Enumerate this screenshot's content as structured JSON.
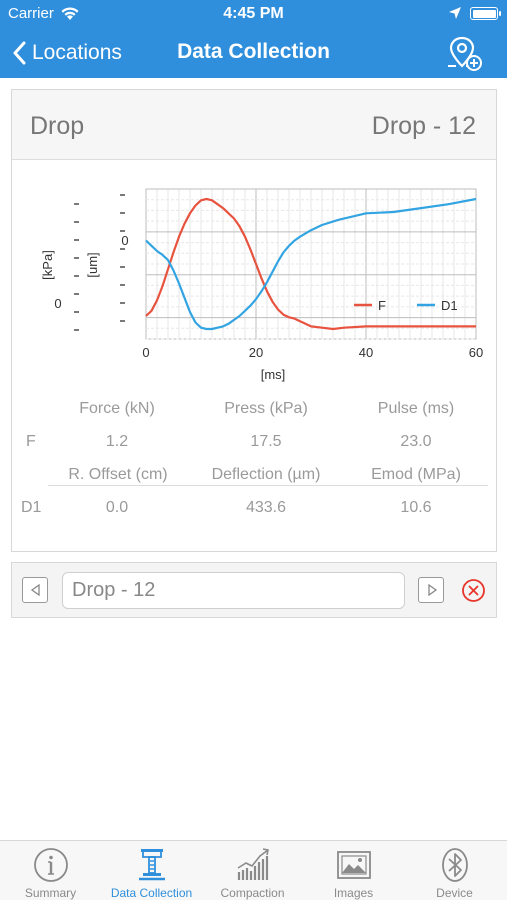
{
  "status_bar": {
    "carrier": "Carrier",
    "time": "4:45 PM",
    "battery_level": 1.0
  },
  "nav": {
    "back_label": "Locations",
    "title": "Data Collection",
    "action_icon": "add-location-icon"
  },
  "drop_card": {
    "title": "Drop",
    "drop_name": "Drop - 12",
    "chart_data": {
      "type": "line",
      "x_label": "[ms]",
      "x_ticks": [
        "0",
        "20",
        "40",
        "60"
      ],
      "xlim": [
        0,
        60
      ],
      "left_axis_labels": [
        "[kPa]",
        "[um]"
      ],
      "left_tick_labels": [
        "0",
        "0"
      ],
      "legend_position": "bottom-right",
      "grid": true,
      "series": [
        {
          "name": "F",
          "color": "#e8533f",
          "x": [
            0,
            1,
            2,
            3,
            4,
            5,
            6,
            7,
            8,
            9,
            10,
            11,
            12,
            13,
            14,
            15,
            16,
            17,
            18,
            19,
            20,
            21,
            22,
            23,
            24,
            25,
            26,
            27,
            28,
            29,
            30,
            32,
            34,
            36,
            40,
            45,
            50,
            55,
            60
          ],
          "y": [
            0.1,
            0.14,
            0.22,
            0.33,
            0.46,
            0.59,
            0.71,
            0.81,
            0.89,
            0.95,
            0.99,
            1.0,
            0.99,
            0.96,
            0.93,
            0.89,
            0.85,
            0.79,
            0.71,
            0.61,
            0.5,
            0.39,
            0.29,
            0.21,
            0.15,
            0.11,
            0.09,
            0.08,
            0.06,
            0.04,
            0.02,
            0.01,
            0.0,
            0.01,
            0.02,
            0.02,
            0.02,
            0.02,
            0.02
          ]
        },
        {
          "name": "D1",
          "color": "#33a4e2",
          "x": [
            0,
            1,
            2,
            3,
            4,
            5,
            6,
            7,
            8,
            9,
            10,
            11,
            12,
            13,
            14,
            15,
            16,
            17,
            18,
            19,
            20,
            21,
            22,
            23,
            24,
            25,
            26,
            27,
            28,
            30,
            32,
            35,
            38,
            40,
            45,
            50,
            55,
            60
          ],
          "y": [
            0.68,
            0.64,
            0.6,
            0.57,
            0.53,
            0.45,
            0.35,
            0.24,
            0.13,
            0.05,
            0.01,
            0.0,
            0.0,
            0.01,
            0.02,
            0.04,
            0.07,
            0.1,
            0.14,
            0.18,
            0.23,
            0.29,
            0.36,
            0.44,
            0.52,
            0.59,
            0.64,
            0.68,
            0.71,
            0.76,
            0.8,
            0.84,
            0.87,
            0.89,
            0.9,
            0.93,
            0.96,
            1.0
          ]
        }
      ]
    },
    "table": {
      "row1_headers": [
        "Force (kN)",
        "Press (kPa)",
        "Pulse (ms)"
      ],
      "row1_label": "F",
      "row1_values": [
        "1.2",
        "17.5",
        "23.0"
      ],
      "row2_headers": [
        "R. Offset (cm)",
        "Deflection (µm)",
        "Emod (MPa)"
      ],
      "row2_label": "D1",
      "row2_values": [
        "0.0",
        "433.6",
        "10.6"
      ]
    }
  },
  "drop_selector": {
    "value": "Drop - 12"
  },
  "tabs": [
    {
      "label": "Summary",
      "icon": "info-icon",
      "active": false
    },
    {
      "label": "Data Collection",
      "icon": "deflectometer-icon",
      "active": true
    },
    {
      "label": "Compaction",
      "icon": "bar-chart-icon",
      "active": false
    },
    {
      "label": "Images",
      "icon": "image-icon",
      "active": false
    },
    {
      "label": "Device",
      "icon": "bluetooth-icon",
      "active": false
    }
  ],
  "colors": {
    "primary": "#2f8fdc",
    "force_series": "#e8533f",
    "deflection_series": "#33a4e2",
    "delete": "#e8352a"
  }
}
